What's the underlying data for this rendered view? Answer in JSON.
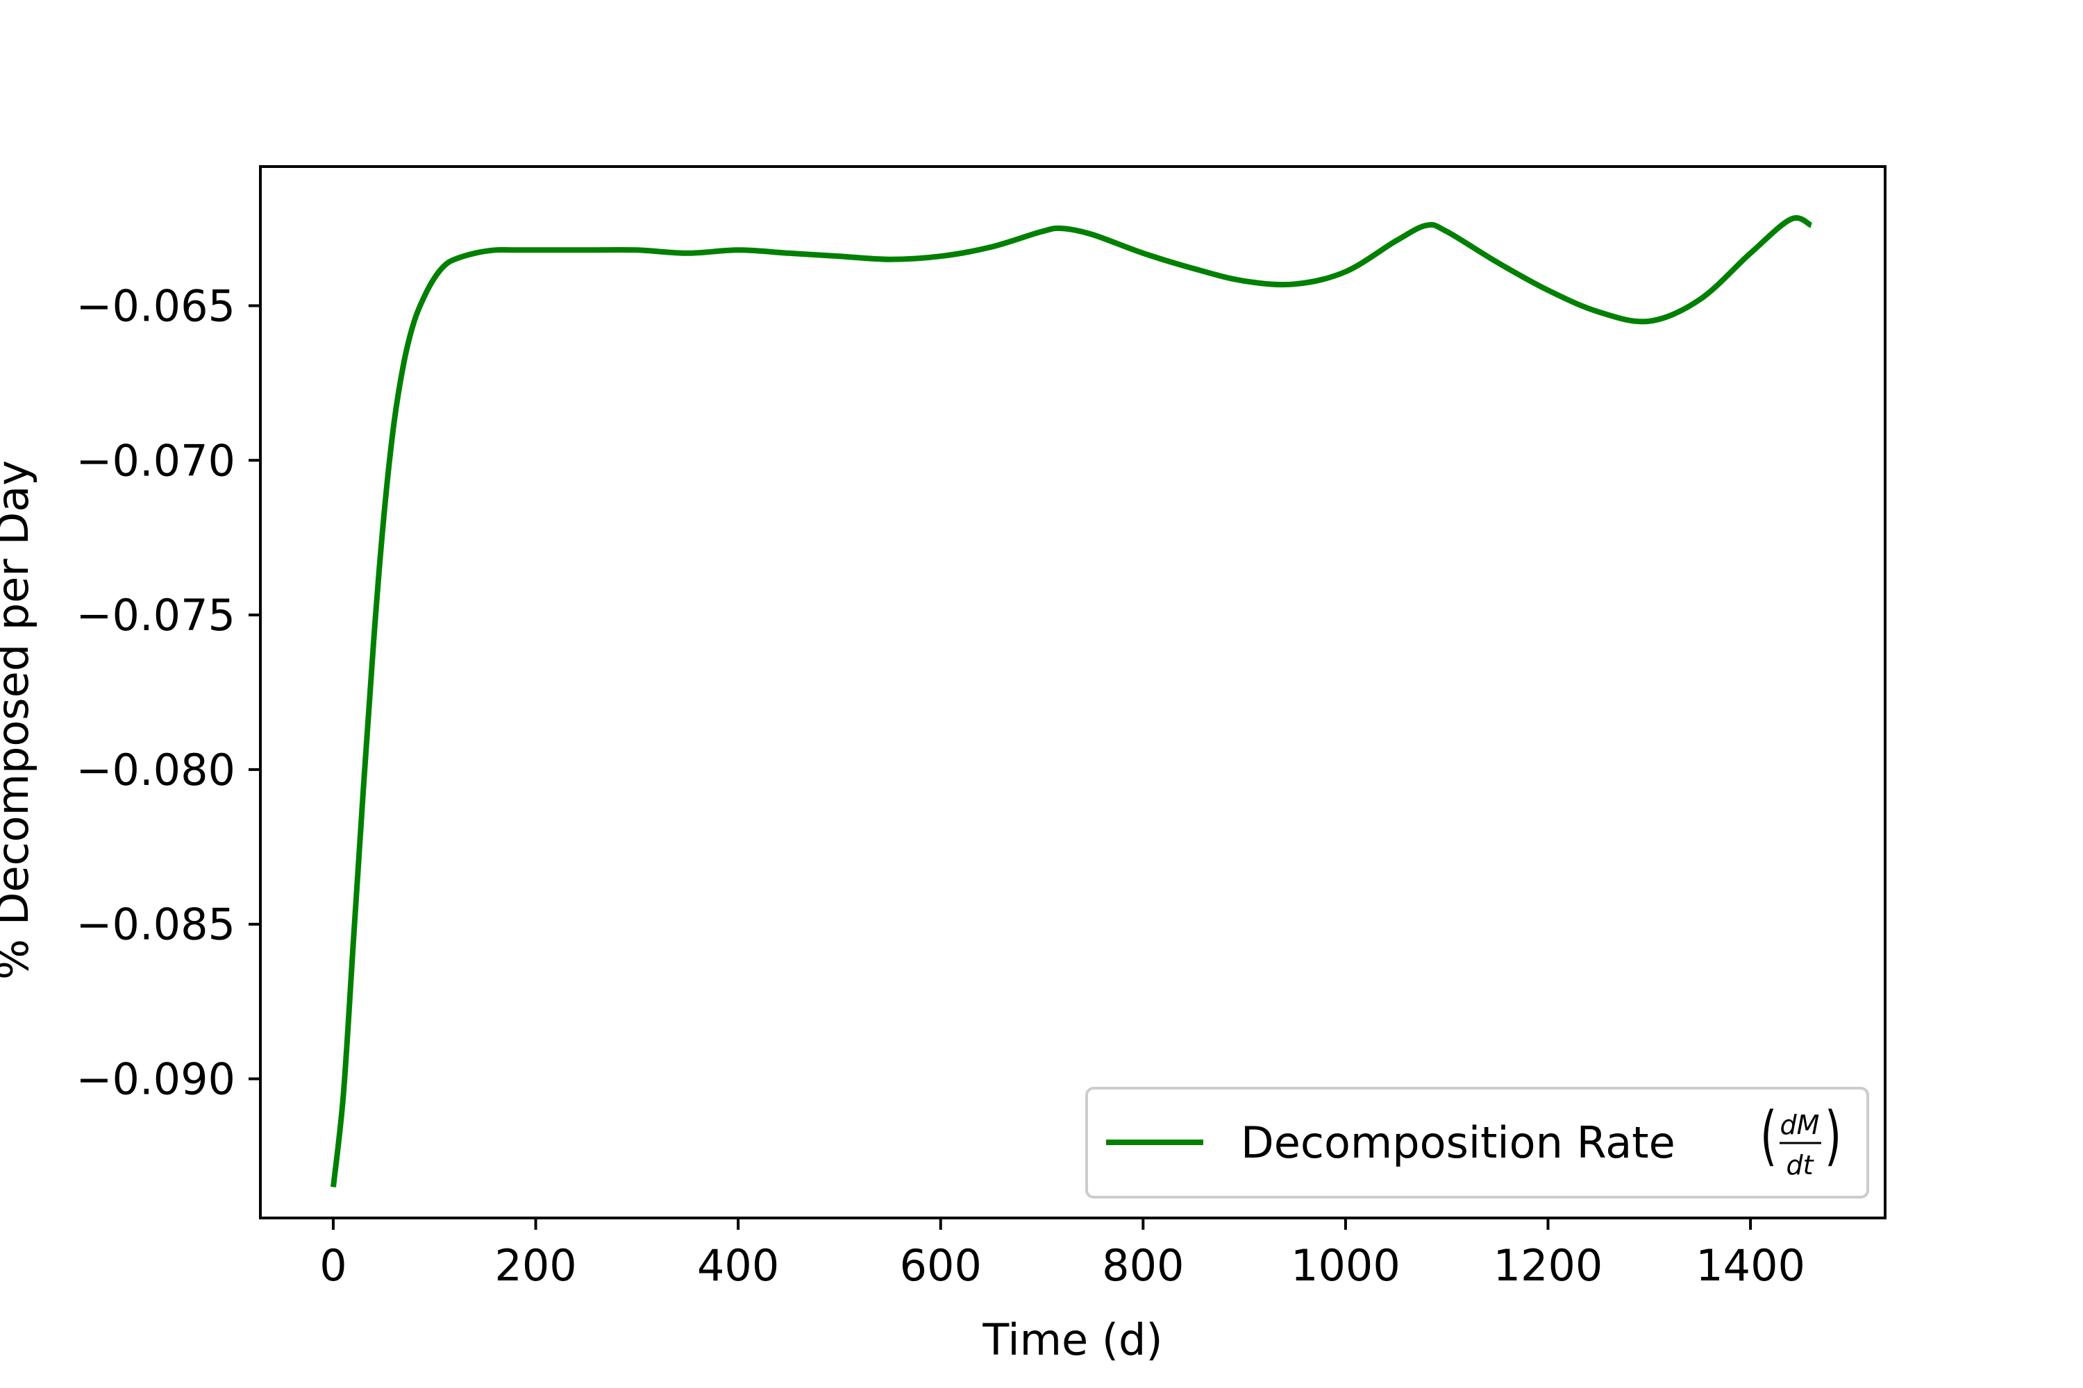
{
  "chart_data": {
    "type": "line",
    "title": "",
    "xlabel": "Time (d)",
    "ylabel": "% Decomposed per Day",
    "xlim": [
      -72,
      1533
    ],
    "ylim": [
      -0.0945,
      -0.0605
    ],
    "xticks": [
      0,
      200,
      400,
      600,
      800,
      1000,
      1200,
      1400
    ],
    "xtick_labels": [
      "0",
      "200",
      "400",
      "600",
      "800",
      "1000",
      "1200",
      "1400"
    ],
    "yticks": [
      -0.065,
      -0.07,
      -0.075,
      -0.08,
      -0.085,
      -0.09
    ],
    "ytick_labels": [
      "−0.065",
      "−0.070",
      "−0.075",
      "−0.080",
      "−0.085",
      "−0.090"
    ],
    "grid": false,
    "legend_position": "lower-right",
    "series": [
      {
        "name": "Decomposition Rate",
        "name_math_numerator": "dM",
        "name_math_denominator": "dt",
        "color": "#008000",
        "x": [
          0,
          10,
          20,
          30,
          40,
          50,
          60,
          70,
          80,
          90,
          100,
          110,
          120,
          140,
          160,
          180,
          200,
          250,
          300,
          350,
          400,
          450,
          500,
          550,
          600,
          650,
          700,
          720,
          750,
          800,
          850,
          900,
          950,
          1000,
          1050,
          1080,
          1100,
          1150,
          1200,
          1250,
          1300,
          1350,
          1400,
          1440,
          1460
        ],
        "y": [
          -0.0935,
          -0.0905,
          -0.0855,
          -0.0805,
          -0.0758,
          -0.0718,
          -0.0688,
          -0.0668,
          -0.0655,
          -0.0647,
          -0.0641,
          -0.0637,
          -0.0635,
          -0.0633,
          -0.0632,
          -0.0632,
          -0.0632,
          -0.0632,
          -0.0632,
          -0.0633,
          -0.0632,
          -0.0633,
          -0.0634,
          -0.0635,
          -0.0634,
          -0.0631,
          -0.0626,
          -0.0625,
          -0.0627,
          -0.0633,
          -0.0638,
          -0.0642,
          -0.0643,
          -0.0639,
          -0.0629,
          -0.0624,
          -0.0626,
          -0.0636,
          -0.0645,
          -0.0652,
          -0.0655,
          -0.0648,
          -0.0633,
          -0.0622,
          -0.0624
        ]
      }
    ]
  }
}
